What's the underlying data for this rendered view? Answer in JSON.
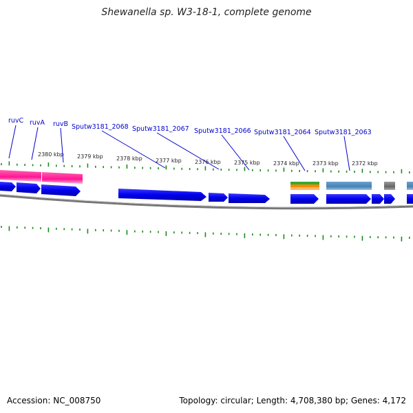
{
  "title": "Shewanella sp. W3-18-1, complete genome",
  "footer": {
    "accession": "Accession: NC_008750",
    "summary": "Topology: circular; Length: 4,708,380 bp; Genes: 4,172"
  },
  "kbp_labels": [
    "2380 kbp",
    "2379 kbp",
    "2378 kbp",
    "2377 kbp",
    "2376 kbp",
    "2375 kbp",
    "2374 kbp",
    "2373 kbp",
    "2372 kbp"
  ],
  "gene_labels": [
    "ruvC",
    "ruvA",
    "ruvB",
    "Sputw3181_2068",
    "Sputw3181_2067",
    "Sputw3181_2066",
    "Sputw3181_2064",
    "Sputw3181_2063"
  ],
  "colors": {
    "cds": "#0000ee",
    "rna_like": "#ff1493",
    "steelblue": "#4682b4",
    "gray": "#777777",
    "green": "#33aa33",
    "orange": "#ff8800",
    "tick": "#1a8a1a",
    "backbone": "#888888"
  }
}
